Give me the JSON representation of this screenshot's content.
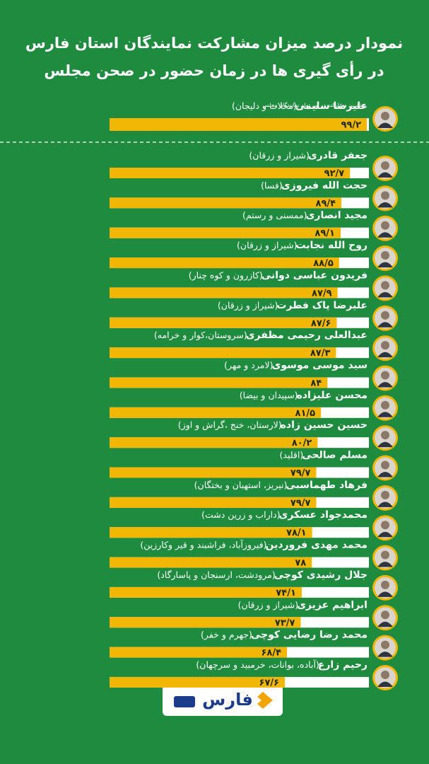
{
  "chart_data": {
    "type": "bar",
    "orientation": "horizontal",
    "title": [
      "نمودار درصد میزان مشارکت نمایندگان استان فارس",
      "در رأی گیری ها در زمان حضور در صحن مجلس"
    ],
    "top_caption": "بیشترین مشارکت در بین تمام نمایندگان مجلس",
    "categories": [
      "علیرضا سلیمی",
      "جعفر قادری",
      "حجت الله فیروزی",
      "مجید انصاری",
      "روح الله نجابت",
      "فریدون عباسی دوانی",
      "علیرضا پاک فطرت",
      "عبدالعلی رحیمی مظفری",
      "سید موسی موسوی",
      "محسن علیزاده",
      "حسین حسین زاده",
      "مسلم صالحی",
      "فرهاد طهماسبی",
      "محمدجواد عسکری",
      "محمد مهدی فروردین",
      "جلال رشیدی کوچی",
      "ابراهیم عزیزی",
      "محمد رضا رضایی کوچی",
      "رحیم زارع"
    ],
    "districts": [
      "(محلات و دلیجان)",
      "(شیراز و زرقان)",
      "(فسا)",
      "(ممسنی و رستم)",
      "(شیراز و زرقان)",
      "(کازرون و کوه چنار)",
      "(شیراز و زرقان)",
      "(سروستان،کوار و خرامه)",
      "(لامرد و مهر)",
      "(سپیدان و بیضا)",
      "(لارستان، خنج ،گراش و اوز)",
      "(اقلید)",
      "(نیریز، استهبان و بختگان)",
      "(داراب و زرین دشت)",
      "(فیروزآباد، فراشبند و قیر وکارزین)",
      "(مرودشت، ارسنجان و پاسارگاد)",
      "(شیراز و زرقان)",
      "(جهرم و خفر)",
      "(آباده، بوانات، خرمبید و سرچهان)"
    ],
    "values": [
      99.2,
      92.7,
      89.4,
      89.1,
      88.5,
      87.9,
      87.6,
      87.3,
      84,
      81.5,
      80.2,
      79.7,
      79.7,
      78.1,
      78,
      74.1,
      73.7,
      68.4,
      67.6
    ],
    "value_labels": [
      "۹۹/۲",
      "۹۲/۷",
      "۸۹/۴",
      "۸۹/۱",
      "۸۸/۵",
      "۸۷/۹",
      "۸۷/۶",
      "۸۷/۳",
      "۸۴",
      "۸۱/۵",
      "۸۰/۲",
      "۷۹/۷",
      "۷۹/۷",
      "۷۸/۱",
      "۷۸",
      "۷۴/۱",
      "۷۳/۷",
      "۶۸/۴",
      "۶۷/۶"
    ],
    "color": "#f2b705",
    "track_color": "#ffffff",
    "xlim": [
      0,
      100
    ],
    "source": "فارس"
  }
}
